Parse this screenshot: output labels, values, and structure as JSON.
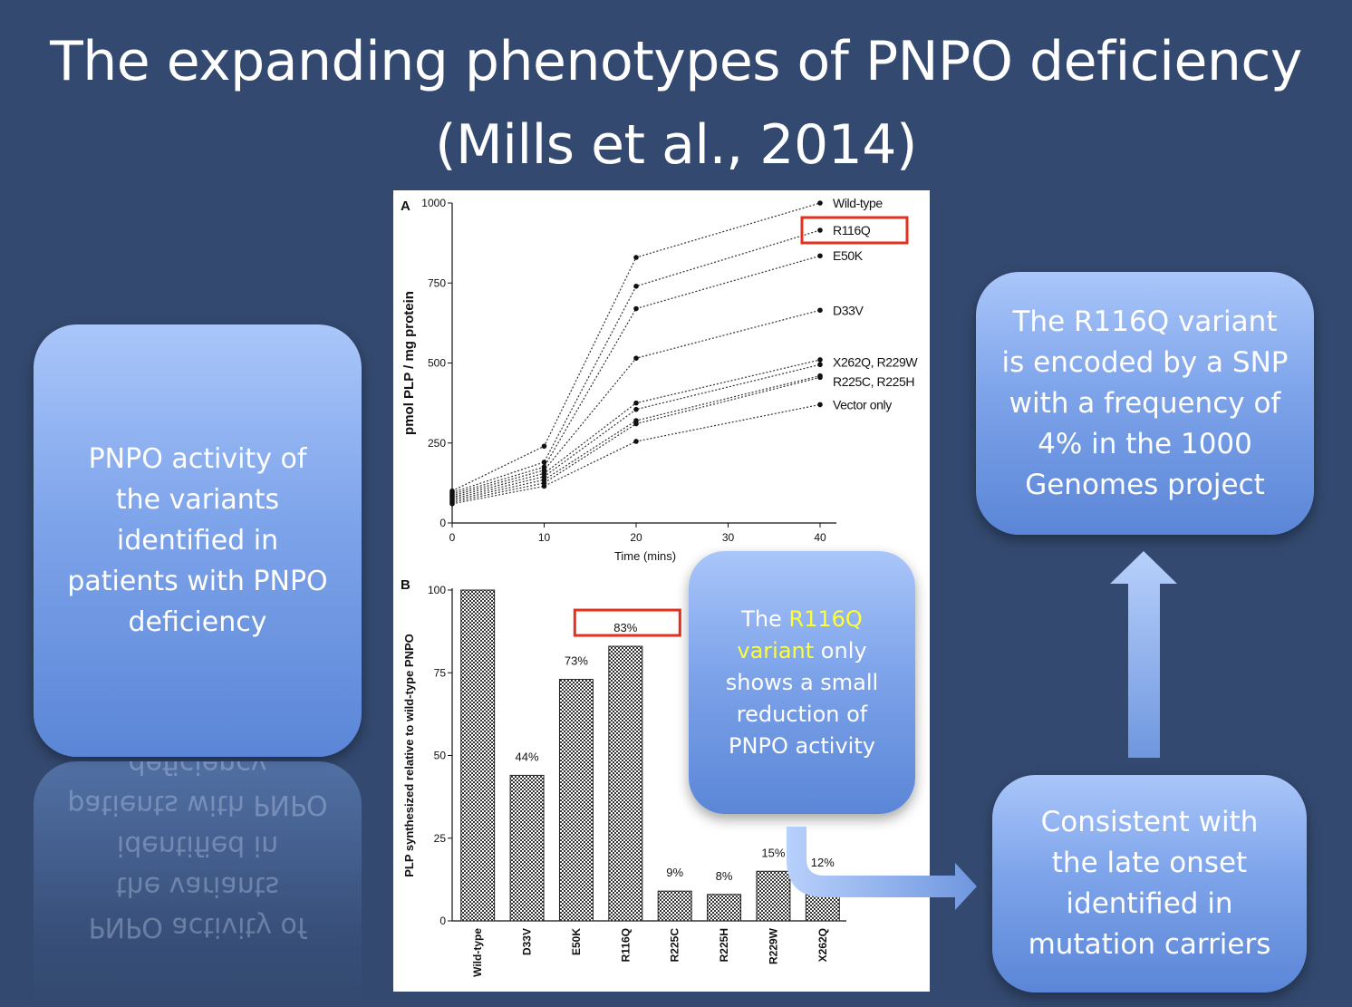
{
  "title": "The expanding phenotypes of PNPO deficiency (Mills et al., 2014)",
  "left_box": {
    "text": "PNPO activity of\nthe variants\nidentified in\npatients with PNPO\ndeficiency"
  },
  "top_right_box": {
    "text": "The R116Q variant\nis encoded by a SNP\nwith a frequency of\n4% in the 1000\nGenomes project"
  },
  "bottom_right_box": {
    "text": "Consistent with\nthe late onset\nidentified in\nmutation carriers"
  },
  "middle_callout": {
    "prefix": "The ",
    "highlight": "R116Q\nvariant",
    "suffix": " only\nshows a small\nreduction of\nPNPO activity"
  },
  "colors": {
    "background": "#33496f",
    "highlight": "#ffff33",
    "red_box": "#e0321e"
  },
  "chart_data": [
    {
      "type": "line",
      "panel": "A",
      "xlabel": "Time (mins)",
      "ylabel": "pmol PLP / mg protein",
      "x": [
        0,
        10,
        20,
        40
      ],
      "xlim": [
        0,
        40
      ],
      "ylim": [
        0,
        1000
      ],
      "xticks": [
        0,
        10,
        20,
        30,
        40
      ],
      "yticks": [
        0,
        250,
        500,
        750,
        1000
      ],
      "series": [
        {
          "name": "Wild-type",
          "values": [
            100,
            240,
            830,
            1000
          ]
        },
        {
          "name": "R116Q",
          "values": [
            95,
            190,
            740,
            915
          ]
        },
        {
          "name": "E50K",
          "values": [
            90,
            175,
            670,
            835
          ]
        },
        {
          "name": "D33V",
          "values": [
            85,
            165,
            515,
            665
          ]
        },
        {
          "name": "X262Q",
          "values": [
            80,
            155,
            375,
            510
          ]
        },
        {
          "name": "R229W",
          "values": [
            75,
            145,
            355,
            495
          ]
        },
        {
          "name": "R225C",
          "values": [
            70,
            135,
            320,
            460
          ]
        },
        {
          "name": "R225H",
          "values": [
            65,
            125,
            310,
            455
          ]
        },
        {
          "name": "Vector only",
          "values": [
            60,
            115,
            255,
            370
          ]
        }
      ],
      "legend_labels": [
        "Wild-type",
        "R116Q",
        "E50K",
        "D33V",
        "X262Q, R229W",
        "R225C, R225H",
        "Vector only"
      ],
      "highlighted": "R116Q"
    },
    {
      "type": "bar",
      "panel": "B",
      "ylabel": "PLP synthesized relative to wild-type PNPO",
      "categories": [
        "Wild-type",
        "D33V",
        "E50K",
        "R116Q",
        "R225C",
        "R225H",
        "R229W",
        "X262Q"
      ],
      "values": [
        100,
        44,
        73,
        83,
        9,
        8,
        15,
        12
      ],
      "data_labels": [
        "",
        "44%",
        "73%",
        "83%",
        "9%",
        "8%",
        "15%",
        "12%"
      ],
      "ylim": [
        0,
        100
      ],
      "yticks": [
        0,
        25,
        50,
        75,
        100
      ],
      "highlighted": "R116Q"
    }
  ]
}
